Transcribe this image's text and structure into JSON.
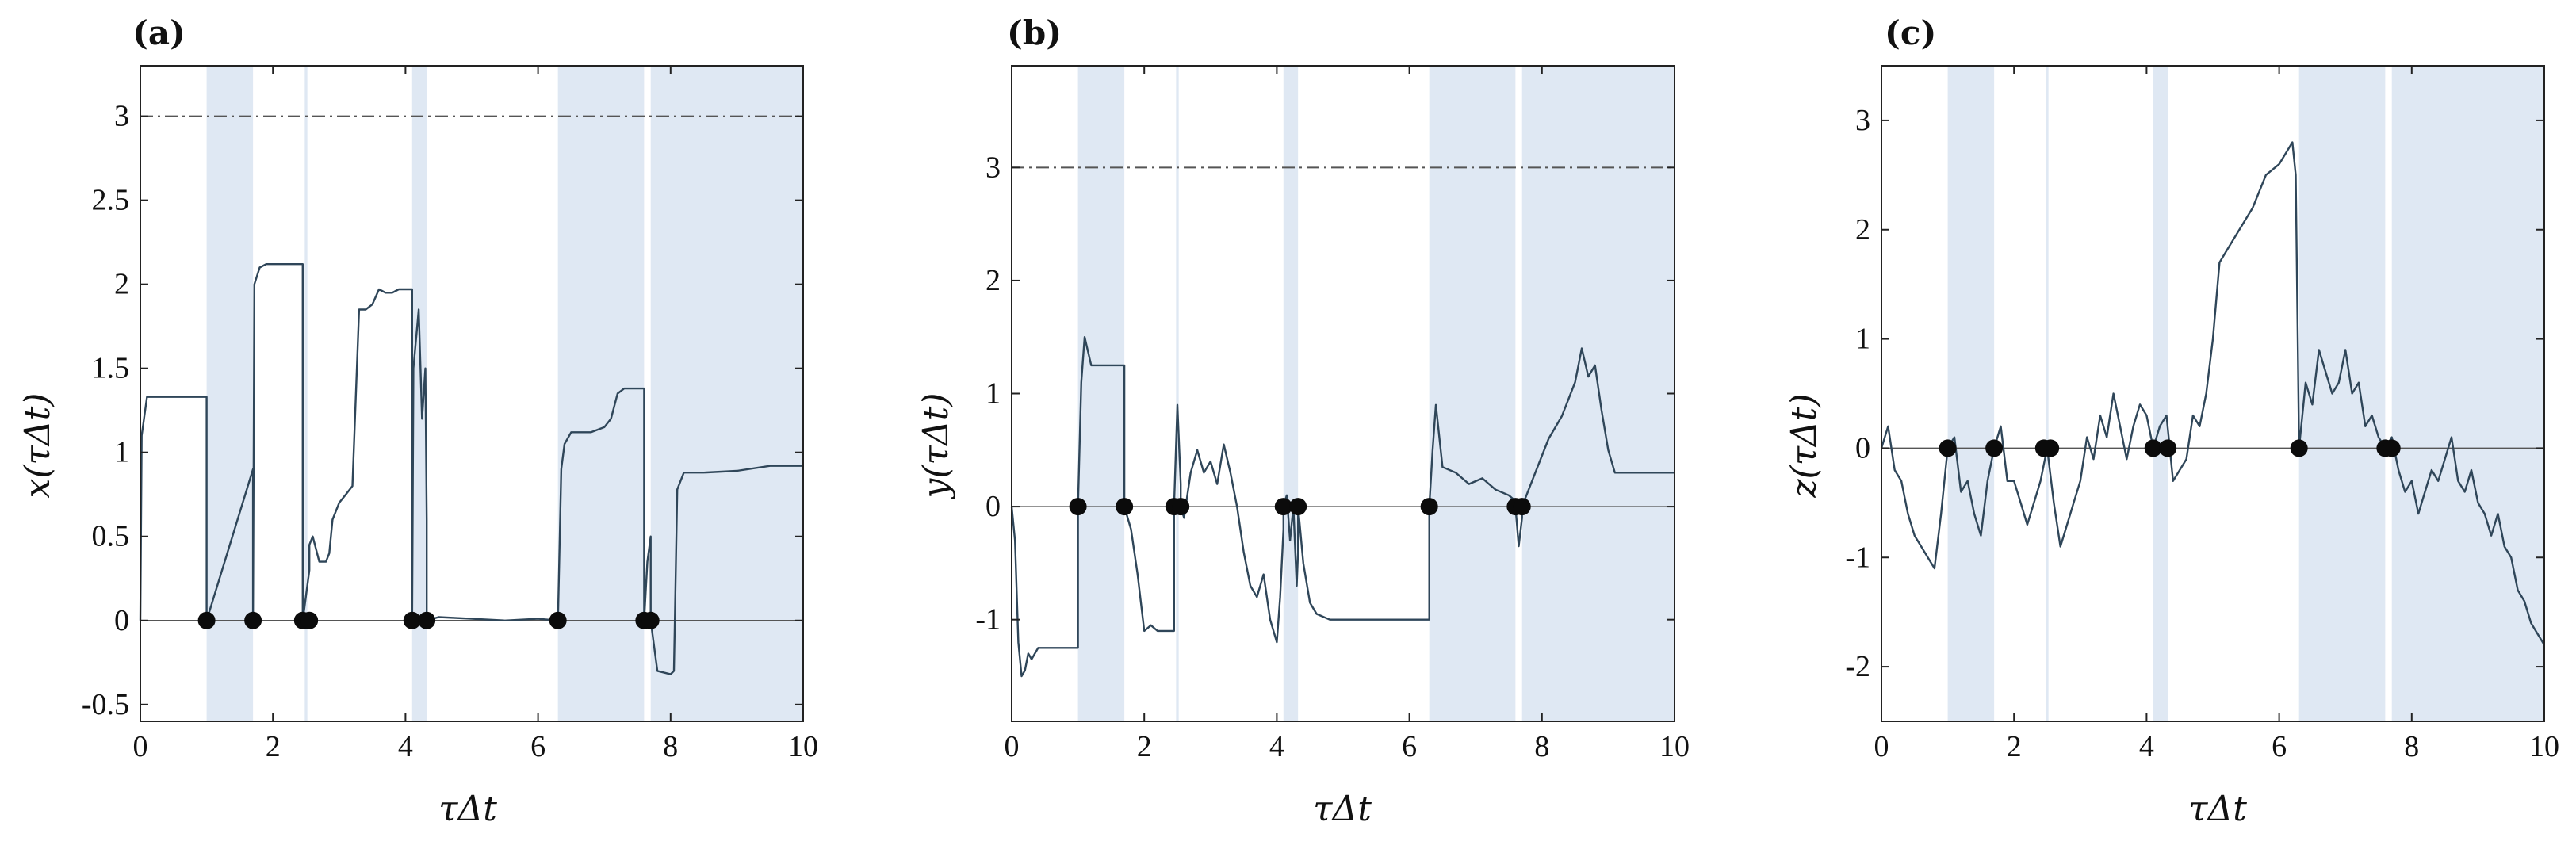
{
  "chart_data": [
    {
      "type": "line",
      "panel_label": "(a)",
      "ylabel": "x(τΔt)",
      "xlabel": "τΔt",
      "xlim": [
        0,
        10
      ],
      "ylim": [
        -0.6,
        3.3
      ],
      "xticks": [
        0,
        2,
        4,
        6,
        8,
        10
      ],
      "xtick_labels": [
        "0",
        "2",
        "4",
        "6",
        "8",
        "10"
      ],
      "yticks": [
        -0.5,
        0,
        0.5,
        1,
        1.5,
        2,
        2.5,
        3
      ],
      "ytick_labels": [
        "-0.5",
        "0",
        "0.5",
        "1",
        "1.5",
        "2",
        "2.5",
        "3"
      ],
      "threshold": 3,
      "shaded_intervals": [
        [
          1.0,
          1.7
        ],
        [
          2.48,
          2.52
        ],
        [
          4.1,
          4.32
        ],
        [
          6.3,
          7.6
        ],
        [
          7.7,
          10
        ]
      ],
      "markers": [
        1.0,
        1.7,
        2.45,
        2.55,
        4.1,
        4.32,
        6.3,
        7.6,
        7.7
      ],
      "series": [
        {
          "x": [
            0,
            0.02,
            0.1,
            1.0,
            1.0,
            1.7,
            1.7,
            1.72,
            1.8,
            1.9,
            2.0,
            2.1,
            2.4,
            2.45,
            2.45,
            2.55,
            2.55,
            2.6,
            2.7,
            2.8,
            2.85,
            2.9,
            3.0,
            3.1,
            3.2,
            3.3,
            3.4,
            3.5,
            3.6,
            3.7,
            3.8,
            3.9,
            4.05,
            4.1,
            4.1,
            4.12,
            4.2,
            4.25,
            4.3,
            4.32,
            4.32,
            4.5,
            5.0,
            5.5,
            6.0,
            6.3,
            6.3,
            6.35,
            6.4,
            6.5,
            6.8,
            7.0,
            7.1,
            7.2,
            7.3,
            7.5,
            7.6,
            7.6,
            7.65,
            7.7,
            7.7,
            7.8,
            8.0,
            8.05,
            8.1,
            8.2,
            8.5,
            9.0,
            9.5,
            10.0
          ],
          "y": [
            0,
            1.1,
            1.33,
            1.33,
            0,
            0.9,
            0,
            2.0,
            2.1,
            2.12,
            2.12,
            2.12,
            2.12,
            2.12,
            0,
            0.3,
            0.45,
            0.5,
            0.35,
            0.35,
            0.4,
            0.6,
            0.7,
            0.75,
            0.8,
            1.85,
            1.85,
            1.88,
            1.97,
            1.95,
            1.95,
            1.97,
            1.97,
            1.97,
            0,
            1.5,
            1.85,
            1.2,
            1.5,
            0.6,
            0,
            0.02,
            0.01,
            0,
            0.01,
            0,
            0,
            0.9,
            1.05,
            1.12,
            1.12,
            1.15,
            1.2,
            1.35,
            1.38,
            1.38,
            1.38,
            0,
            0.35,
            0.5,
            0,
            -0.3,
            -0.32,
            -0.3,
            0.78,
            0.88,
            0.88,
            0.89,
            0.92,
            0.92
          ]
        }
      ]
    },
    {
      "type": "line",
      "panel_label": "(b)",
      "ylabel": "y(τΔt)",
      "xlabel": "τΔt",
      "xlim": [
        0,
        10
      ],
      "ylim": [
        -1.9,
        3.9
      ],
      "xticks": [
        0,
        2,
        4,
        6,
        8,
        10
      ],
      "xtick_labels": [
        "0",
        "2",
        "4",
        "6",
        "8",
        "10"
      ],
      "yticks": [
        -1,
        0,
        1,
        2,
        3
      ],
      "ytick_labels": [
        "-1",
        "0",
        "1",
        "2",
        "3"
      ],
      "threshold": 3,
      "shaded_intervals": [
        [
          1.0,
          1.7
        ],
        [
          2.48,
          2.52
        ],
        [
          4.1,
          4.32
        ],
        [
          6.3,
          7.6
        ],
        [
          7.7,
          10
        ]
      ],
      "markers": [
        1.0,
        1.7,
        2.45,
        2.55,
        4.1,
        4.32,
        6.3,
        7.6,
        7.7
      ],
      "series": [
        {
          "x": [
            0,
            0.05,
            0.1,
            0.15,
            0.2,
            0.25,
            0.3,
            0.4,
            0.5,
            0.6,
            0.7,
            0.8,
            0.9,
            1.0,
            1.0,
            1.05,
            1.1,
            1.2,
            1.5,
            1.7,
            1.7,
            1.8,
            1.9,
            2.0,
            2.1,
            2.2,
            2.3,
            2.45,
            2.45,
            2.5,
            2.55,
            2.55,
            2.6,
            2.7,
            2.8,
            2.9,
            3.0,
            3.1,
            3.2,
            3.3,
            3.4,
            3.5,
            3.6,
            3.7,
            3.8,
            3.9,
            4.0,
            4.05,
            4.1,
            4.1,
            4.15,
            4.2,
            4.25,
            4.3,
            4.32,
            4.32,
            4.4,
            4.5,
            4.6,
            4.8,
            5.5,
            6.0,
            6.3,
            6.3,
            6.35,
            6.4,
            6.5,
            6.7,
            6.9,
            7.1,
            7.3,
            7.5,
            7.6,
            7.6,
            7.65,
            7.7,
            7.7,
            7.9,
            8.1,
            8.3,
            8.5,
            8.6,
            8.7,
            8.8,
            8.9,
            9.0,
            9.1,
            9.2,
            9.5,
            10.0
          ],
          "y": [
            0,
            -0.3,
            -1.2,
            -1.5,
            -1.45,
            -1.3,
            -1.35,
            -1.25,
            -1.25,
            -1.25,
            -1.25,
            -1.25,
            -1.25,
            -1.25,
            0,
            1.1,
            1.5,
            1.25,
            1.25,
            1.25,
            0,
            -0.2,
            -0.6,
            -1.1,
            -1.05,
            -1.1,
            -1.1,
            -1.1,
            0,
            0.9,
            0.2,
            0,
            -0.1,
            0.3,
            0.5,
            0.3,
            0.4,
            0.2,
            0.55,
            0.3,
            0.0,
            -0.4,
            -0.7,
            -0.8,
            -0.6,
            -1.0,
            -1.2,
            -0.8,
            -0.2,
            0,
            0.1,
            -0.3,
            0.0,
            -0.7,
            -0.4,
            0,
            -0.5,
            -0.85,
            -0.95,
            -1.0,
            -1.0,
            -1.0,
            -1.0,
            0,
            0.5,
            0.9,
            0.35,
            0.3,
            0.2,
            0.25,
            0.15,
            0.1,
            0.05,
            0,
            -0.35,
            -0.1,
            0,
            0.3,
            0.6,
            0.8,
            1.1,
            1.4,
            1.15,
            1.25,
            0.85,
            0.5,
            0.3,
            0.3,
            0.3,
            0.3
          ]
        }
      ]
    },
    {
      "type": "line",
      "panel_label": "(c)",
      "ylabel": "z(τΔt)",
      "xlabel": "τΔt",
      "xlim": [
        0,
        10
      ],
      "ylim": [
        -2.5,
        3.5
      ],
      "xticks": [
        0,
        2,
        4,
        6,
        8,
        10
      ],
      "xtick_labels": [
        "0",
        "2",
        "4",
        "6",
        "8",
        "10"
      ],
      "yticks": [
        -2,
        -1,
        0,
        1,
        2,
        3
      ],
      "ytick_labels": [
        "-2",
        "-1",
        "0",
        "1",
        "2",
        "3"
      ],
      "threshold": null,
      "shaded_intervals": [
        [
          1.0,
          1.7
        ],
        [
          2.48,
          2.52
        ],
        [
          4.1,
          4.32
        ],
        [
          6.3,
          7.6
        ],
        [
          7.7,
          10
        ]
      ],
      "markers": [
        1.0,
        1.7,
        2.45,
        2.55,
        4.1,
        4.32,
        6.3,
        7.6,
        7.7
      ],
      "series": [
        {
          "x": [
            0,
            0.1,
            0.2,
            0.3,
            0.4,
            0.5,
            0.6,
            0.7,
            0.8,
            0.9,
            1.0,
            1.1,
            1.2,
            1.3,
            1.4,
            1.5,
            1.6,
            1.7,
            1.8,
            1.9,
            2.0,
            2.1,
            2.2,
            2.3,
            2.4,
            2.5,
            2.6,
            2.7,
            2.8,
            2.9,
            3.0,
            3.1,
            3.2,
            3.3,
            3.4,
            3.5,
            3.6,
            3.7,
            3.8,
            3.9,
            4.0,
            4.1,
            4.2,
            4.3,
            4.4,
            4.5,
            4.6,
            4.7,
            4.8,
            4.9,
            5.0,
            5.1,
            5.2,
            5.4,
            5.6,
            5.8,
            6.0,
            6.1,
            6.2,
            6.25,
            6.3,
            6.4,
            6.5,
            6.6,
            6.7,
            6.8,
            6.9,
            7.0,
            7.1,
            7.2,
            7.3,
            7.4,
            7.5,
            7.6,
            7.7,
            7.8,
            7.9,
            8.0,
            8.1,
            8.2,
            8.3,
            8.4,
            8.5,
            8.6,
            8.7,
            8.8,
            8.9,
            9.0,
            9.1,
            9.2,
            9.3,
            9.4,
            9.5,
            9.6,
            9.7,
            9.8,
            9.9,
            10.0
          ],
          "y": [
            0,
            0.2,
            -0.2,
            -0.3,
            -0.6,
            -0.8,
            -0.9,
            -1.0,
            -1.1,
            -0.6,
            0,
            0.1,
            -0.4,
            -0.3,
            -0.6,
            -0.8,
            -0.3,
            0,
            0.2,
            -0.3,
            -0.3,
            -0.5,
            -0.7,
            -0.5,
            -0.3,
            0,
            -0.5,
            -0.9,
            -0.7,
            -0.5,
            -0.3,
            0.1,
            -0.1,
            0.3,
            0.1,
            0.5,
            0.2,
            -0.1,
            0.2,
            0.4,
            0.3,
            0,
            0.2,
            0.3,
            -0.3,
            -0.2,
            -0.1,
            0.3,
            0.2,
            0.5,
            1.0,
            1.7,
            1.8,
            2.0,
            2.2,
            2.5,
            2.6,
            2.7,
            2.8,
            2.5,
            0,
            0.6,
            0.4,
            0.9,
            0.7,
            0.5,
            0.6,
            0.9,
            0.5,
            0.6,
            0.2,
            0.3,
            0.1,
            0,
            0.1,
            -0.2,
            -0.4,
            -0.3,
            -0.6,
            -0.4,
            -0.2,
            -0.3,
            -0.1,
            0.1,
            -0.3,
            -0.4,
            -0.2,
            -0.5,
            -0.6,
            -0.8,
            -0.6,
            -0.9,
            -1.0,
            -1.3,
            -1.4,
            -1.6,
            -1.7,
            -1.8
          ]
        }
      ]
    }
  ]
}
